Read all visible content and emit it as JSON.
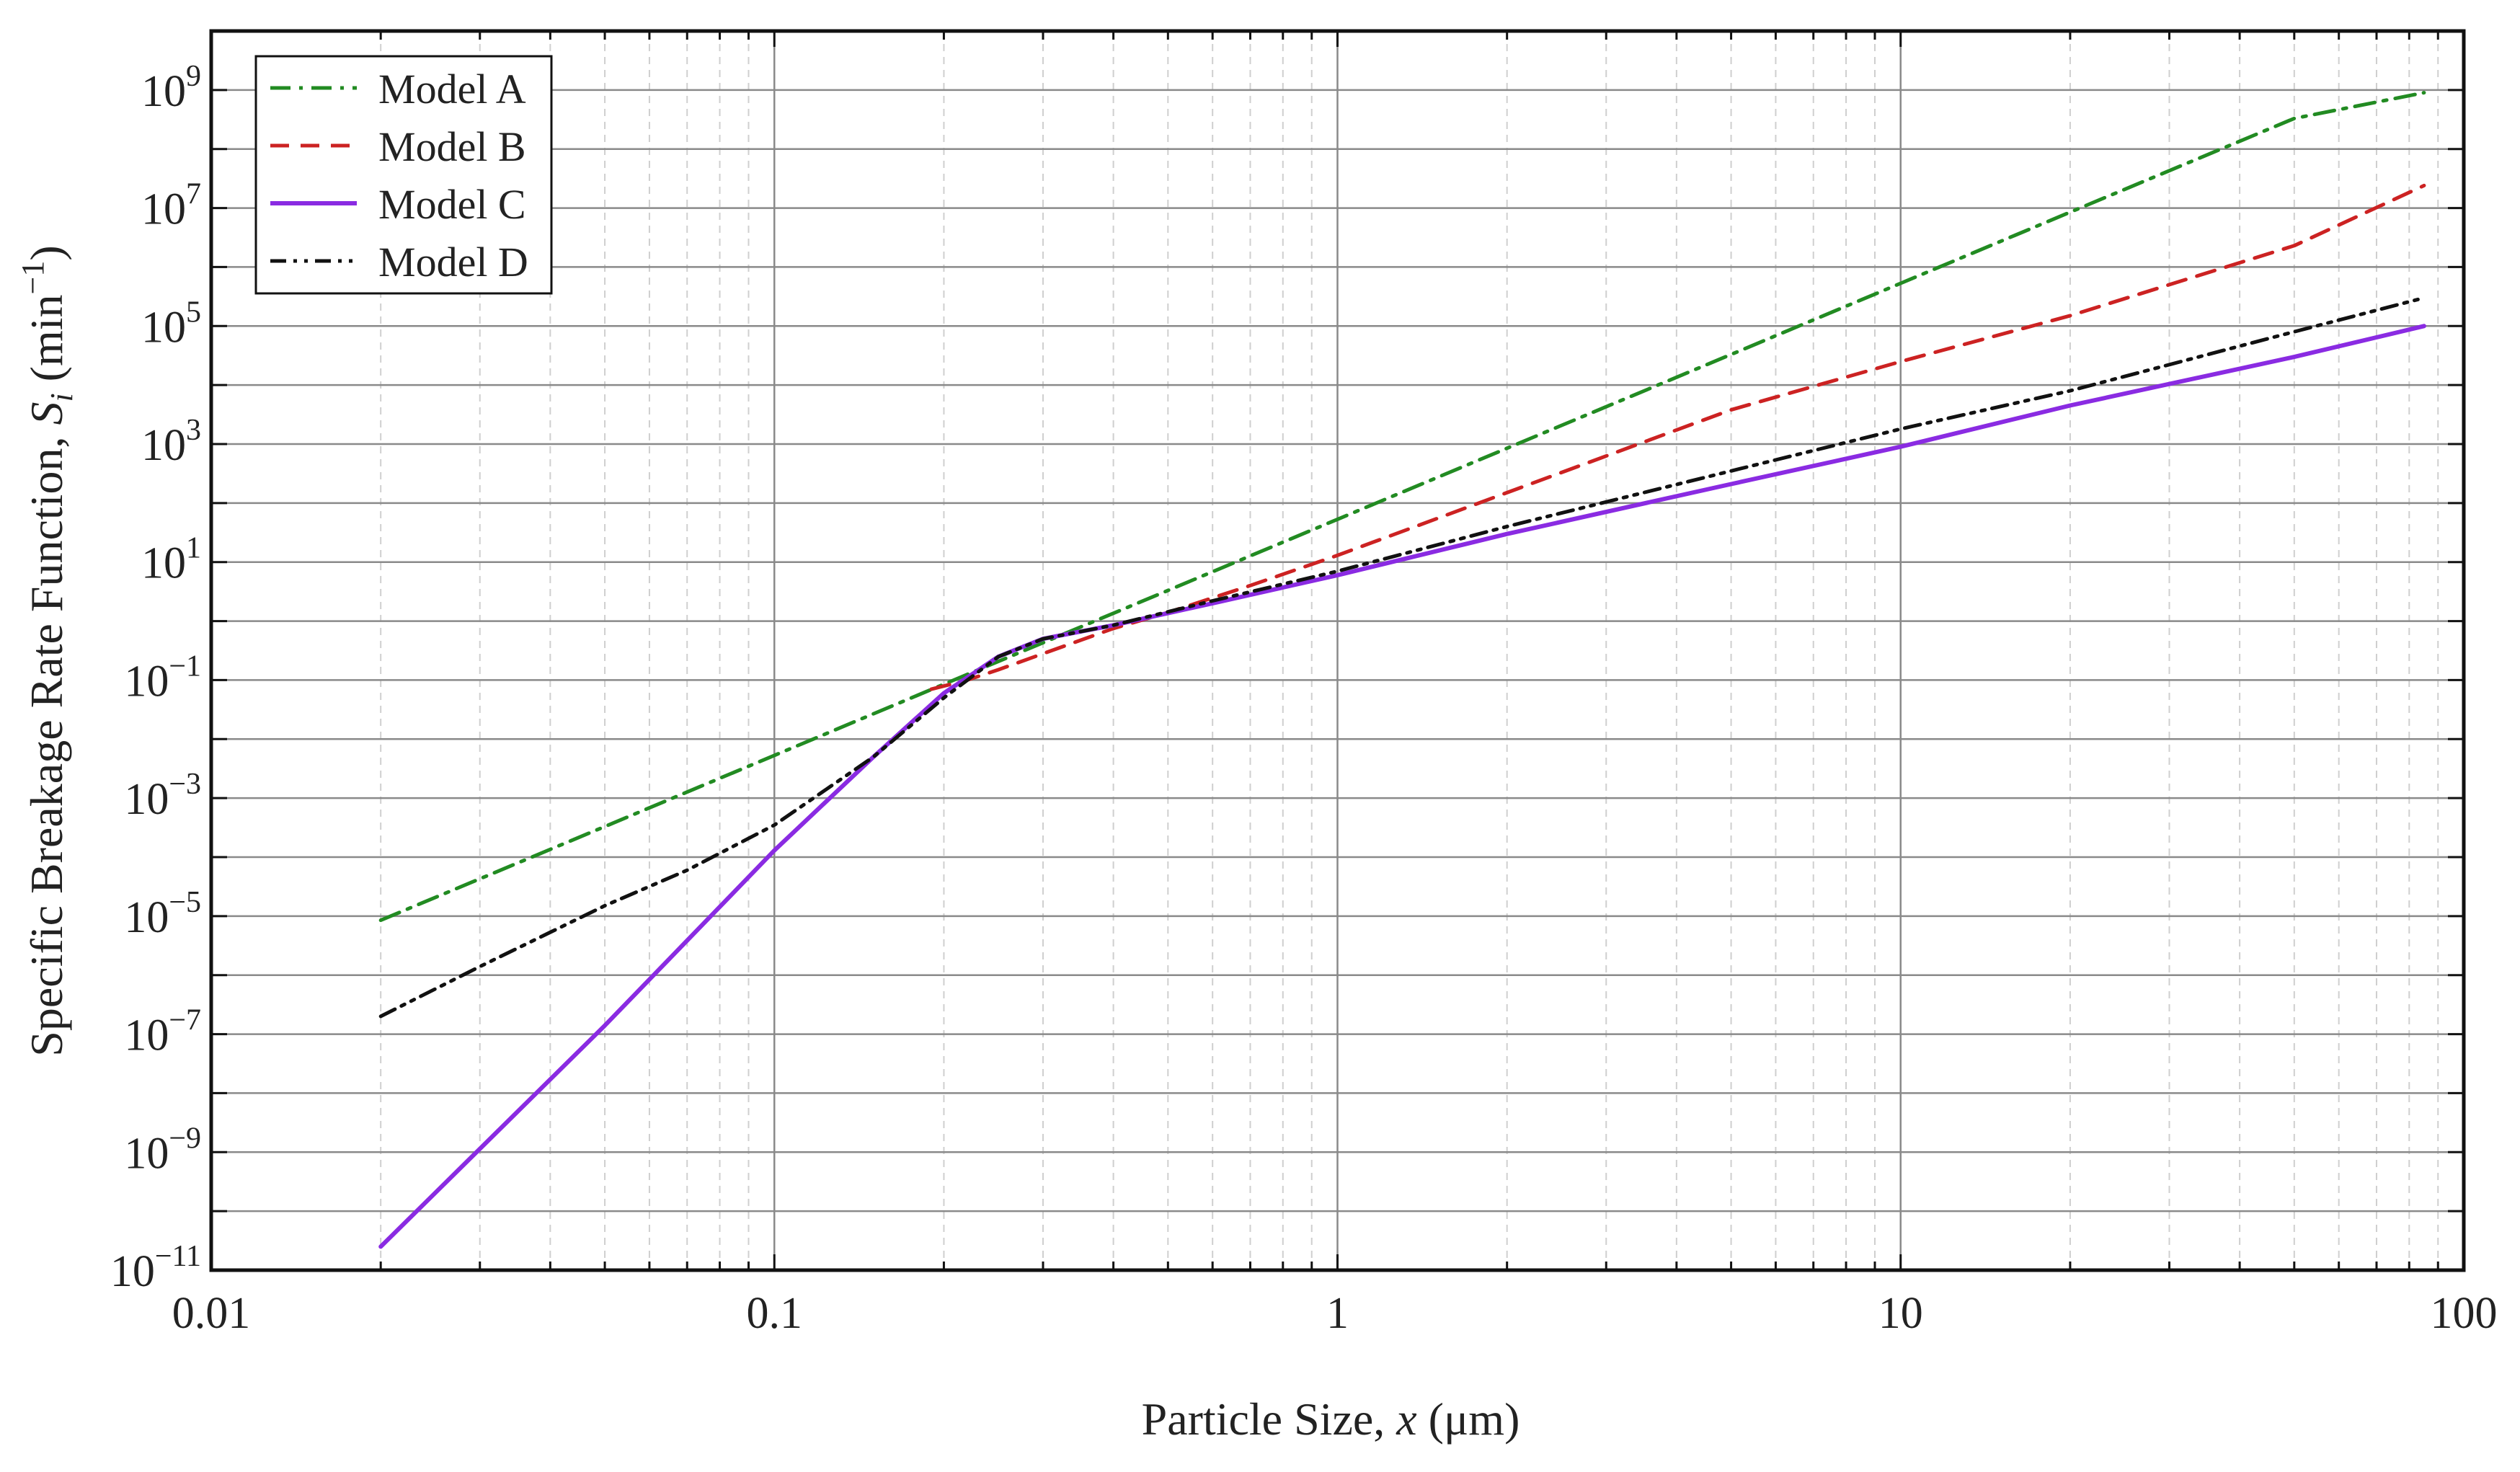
{
  "chart_data": {
    "type": "line",
    "xlabel_prefix": "Particle Size, ",
    "xlabel_var": "x",
    "xlabel_suffix": " (μm)",
    "ylabel_prefix": "Specific Breakage Rate Function, ",
    "ylabel_var": "S",
    "ylabel_sub": "i",
    "ylabel_unit_open": " (min",
    "ylabel_unit_sup": "−1",
    "ylabel_unit_close": ")",
    "x_scale": "log",
    "y_scale": "log",
    "xlim": [
      0.01,
      100
    ],
    "ylim": [
      1e-11,
      10000000000.0
    ],
    "x_ticks": [
      {
        "value": 0.01,
        "label": "0.01"
      },
      {
        "value": 0.1,
        "label": "0.1"
      },
      {
        "value": 1,
        "label": "1"
      },
      {
        "value": 10,
        "label": "10"
      },
      {
        "value": 100,
        "label": "100"
      }
    ],
    "y_ticks": [
      {
        "value": 1e-11,
        "base": "10",
        "exp": "-11"
      },
      {
        "value": 1e-09,
        "base": "10",
        "exp": "-9"
      },
      {
        "value": 1e-07,
        "base": "10",
        "exp": "-7"
      },
      {
        "value": 1e-05,
        "base": "10",
        "exp": "-5"
      },
      {
        "value": 0.001,
        "base": "10",
        "exp": "-3"
      },
      {
        "value": 0.1,
        "base": "10",
        "exp": "-1"
      },
      {
        "value": 10.0,
        "base": "10",
        "exp": "1"
      },
      {
        "value": 1000.0,
        "base": "10",
        "exp": "3"
      },
      {
        "value": 100000.0,
        "base": "10",
        "exp": "5"
      },
      {
        "value": 10000000.0,
        "base": "10",
        "exp": "7"
      },
      {
        "value": 1000000000.0,
        "base": "10",
        "exp": "9"
      }
    ],
    "grid": true,
    "legend_position": "top-left",
    "series": [
      {
        "name": "Model A",
        "color": "#228b22",
        "dash": "dash-dot",
        "x": [
          0.02,
          0.05,
          0.1,
          0.2,
          0.3,
          0.5,
          1,
          2,
          5,
          10,
          20,
          50,
          85
        ],
        "y": [
          8.5e-06,
          0.00033,
          0.0053,
          0.085,
          0.43,
          3.3,
          53,
          850,
          33000.0,
          530000.0,
          8500000.0,
          330000000.0,
          900000000.0
        ]
      },
      {
        "name": "Model B",
        "color": "#cc2222",
        "dash": "dashed",
        "x": [
          0.19,
          0.22,
          0.25,
          0.3,
          0.4,
          0.5,
          0.7,
          1,
          2,
          5,
          10,
          20,
          50,
          85
        ],
        "y": [
          0.07,
          0.1,
          0.15,
          0.28,
          0.75,
          1.4,
          4,
          13,
          150,
          3800.0,
          25000.0,
          150000.0,
          2300000.0,
          24000000.0
        ]
      },
      {
        "name": "Model C",
        "color": "#8a2be2",
        "dash": "solid",
        "x": [
          0.02,
          0.05,
          0.1,
          0.15,
          0.2,
          0.25,
          0.3,
          0.4,
          0.6,
          1,
          2,
          5,
          10,
          20,
          50,
          85
        ],
        "y": [
          2.5e-11,
          1.4e-07,
          0.00013,
          0.005,
          0.06,
          0.25,
          0.5,
          0.85,
          2,
          6,
          30,
          210,
          900,
          4500.0,
          30000.0,
          100000.0
        ]
      },
      {
        "name": "Model D",
        "color": "#111111",
        "dash": "dash-dot-dot",
        "x": [
          0.02,
          0.03,
          0.05,
          0.07,
          0.1,
          0.15,
          0.2,
          0.25,
          0.3,
          0.4,
          0.6,
          1,
          2,
          5,
          10,
          20,
          50,
          85
        ],
        "y": [
          2e-07,
          1.4e-06,
          1.5e-05,
          6e-05,
          0.00035,
          0.005,
          0.05,
          0.25,
          0.5,
          0.85,
          2.2,
          7,
          40,
          350,
          1800.0,
          8000.0,
          80000.0,
          300000.0
        ]
      }
    ]
  }
}
